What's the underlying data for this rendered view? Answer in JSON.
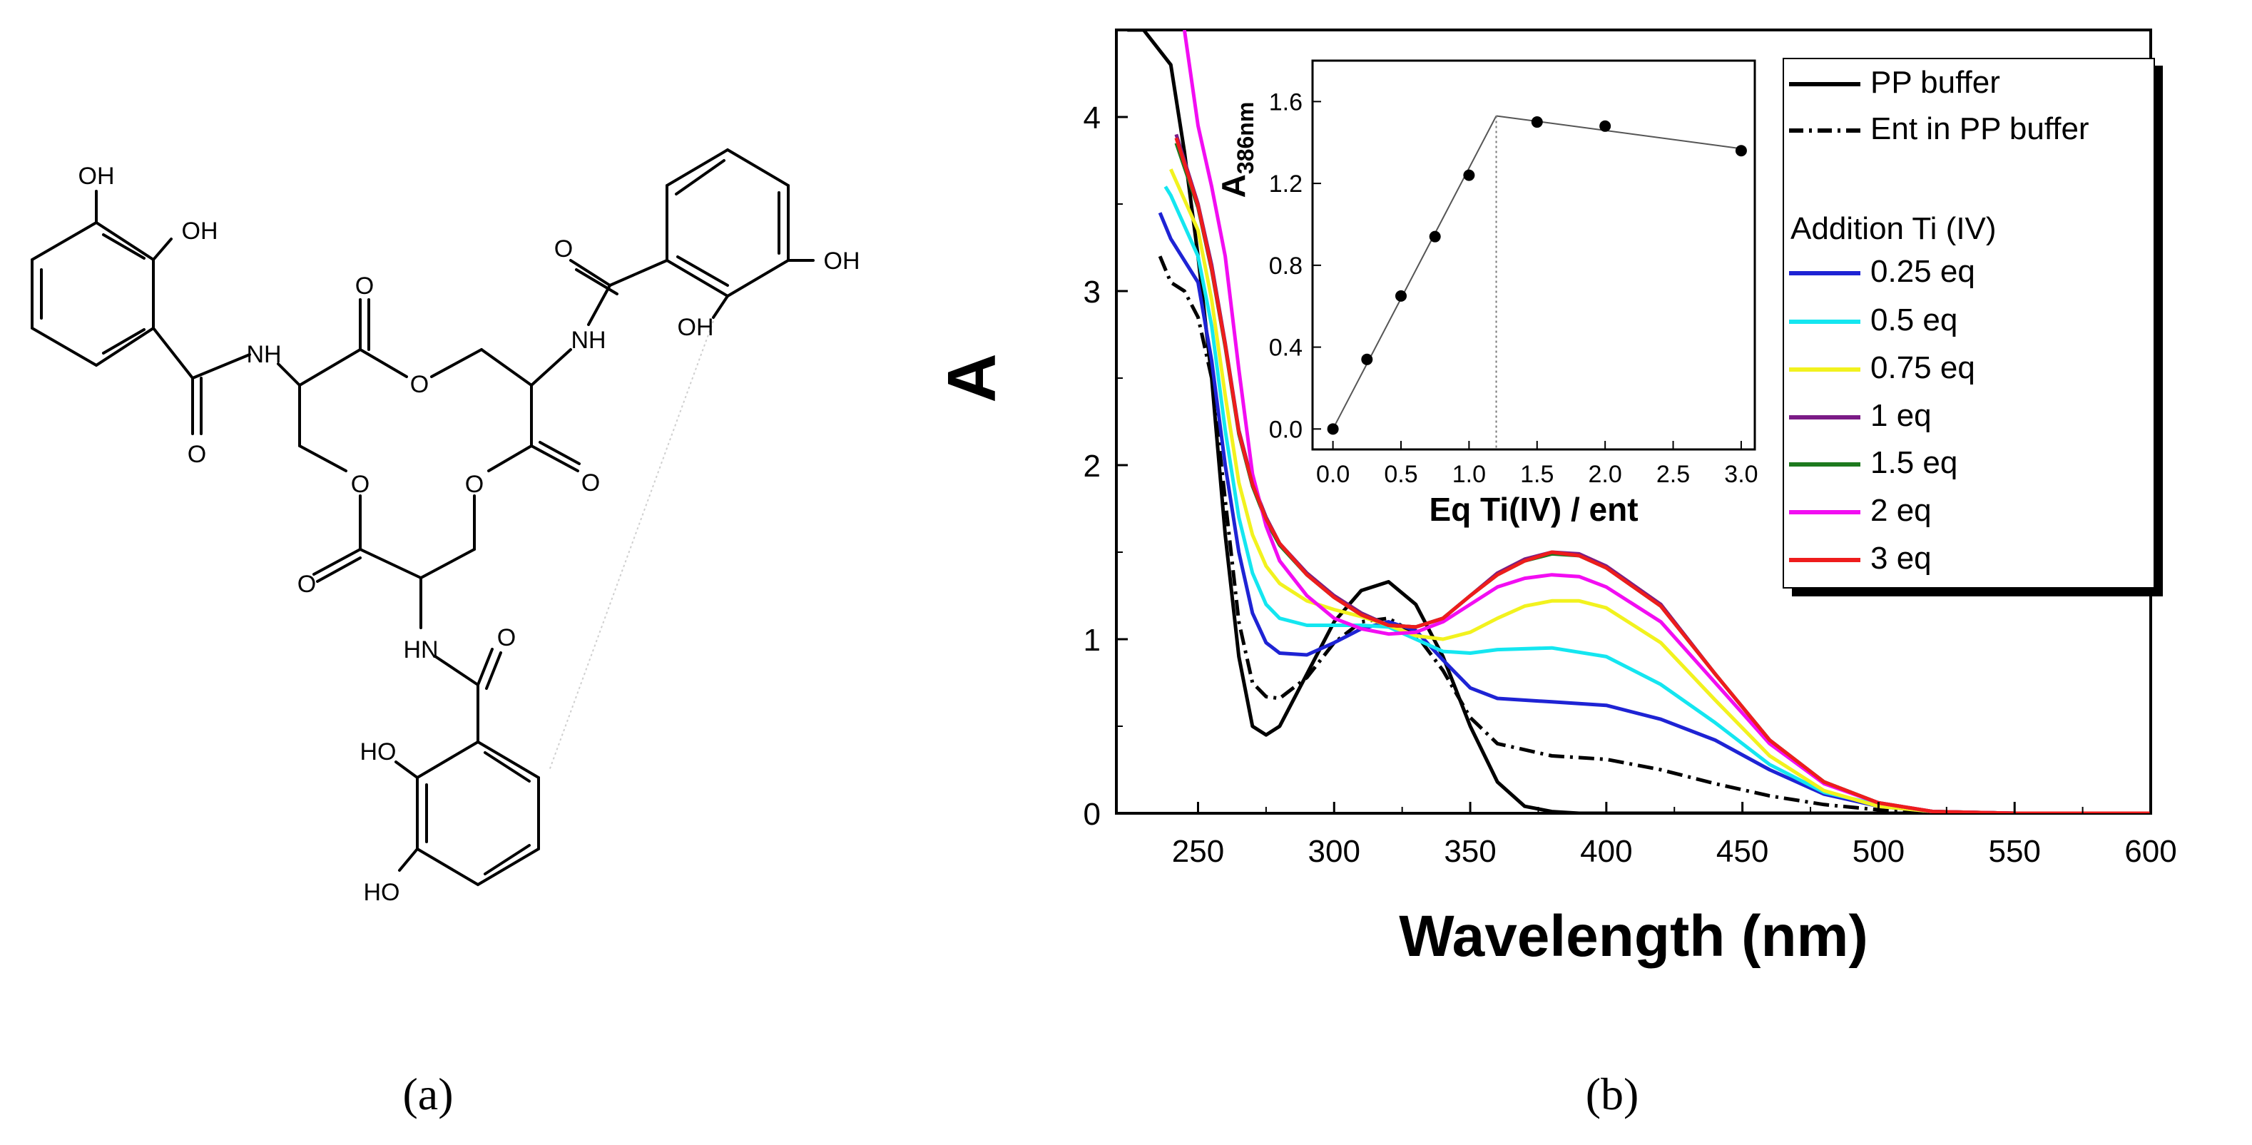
{
  "panel_labels": {
    "a": "(a)",
    "b": "(b)"
  },
  "molecule": {
    "atom_labels": {
      "oh_1": "OH",
      "oh_2": "OH",
      "nh_1": "NH",
      "o_carbonyl_1": "O",
      "o_amide_1": "O",
      "o_ring_1": "O",
      "o_carbonyl_2": "O",
      "nh_2": "NH",
      "o_amide_2": "O",
      "oh_3": "OH",
      "oh_4": "OH",
      "o_ring_2": "O",
      "o_ring_3": "O",
      "o_carbonyl_3": "O",
      "o_carbonyl_4": "O",
      "nh_3": "HN",
      "o_amide_3": "O",
      "ho_1": "HO",
      "ho_2": "HO"
    }
  },
  "chart_data": [
    {
      "type": "line",
      "xlabel": "Wavelength (nm)",
      "ylabel": "A",
      "xlim": [
        220,
        600
      ],
      "ylim": [
        0,
        4.5
      ],
      "xticks": [
        "250",
        "300",
        "350",
        "400",
        "450",
        "500",
        "550",
        "600"
      ],
      "yticks": [
        "0",
        "1",
        "2",
        "3",
        "4"
      ],
      "legend_position": "top-right",
      "legend_heading": "Addition Ti (IV)",
      "series": [
        {
          "name": "PP buffer",
          "color": "#000000",
          "dash": "solid",
          "x": [
            224,
            230,
            240,
            245,
            250,
            255,
            260,
            265,
            270,
            275,
            280,
            290,
            300,
            310,
            320,
            330,
            340,
            350,
            360,
            370,
            380,
            390,
            400,
            450,
            500,
            600
          ],
          "y": [
            4.5,
            4.5,
            4.3,
            3.8,
            3.2,
            2.5,
            1.6,
            0.9,
            0.5,
            0.45,
            0.5,
            0.8,
            1.1,
            1.28,
            1.33,
            1.2,
            0.9,
            0.5,
            0.18,
            0.04,
            0.01,
            0,
            0,
            0,
            0,
            0
          ]
        },
        {
          "name": "Ent in PP buffer",
          "color": "#000000",
          "dash": "dashdot",
          "x": [
            236,
            240,
            245,
            250,
            255,
            260,
            265,
            270,
            275,
            280,
            290,
            300,
            310,
            320,
            330,
            340,
            350,
            360,
            380,
            400,
            420,
            440,
            460,
            480,
            500,
            520,
            550,
            600
          ],
          "y": [
            3.2,
            3.05,
            3.0,
            2.85,
            2.5,
            1.8,
            1.1,
            0.75,
            0.67,
            0.66,
            0.78,
            0.98,
            1.1,
            1.12,
            1.03,
            0.82,
            0.55,
            0.4,
            0.33,
            0.31,
            0.25,
            0.17,
            0.1,
            0.05,
            0.02,
            0.01,
            0,
            0
          ]
        },
        {
          "name": "0.25 eq",
          "color": "#1e23d4",
          "dash": "solid",
          "x": [
            236,
            240,
            250,
            255,
            260,
            265,
            270,
            275,
            280,
            290,
            300,
            310,
            320,
            330,
            340,
            350,
            360,
            380,
            400,
            420,
            440,
            460,
            480,
            500,
            520,
            550,
            600
          ],
          "y": [
            3.45,
            3.3,
            3.05,
            2.6,
            2.0,
            1.5,
            1.15,
            0.98,
            0.92,
            0.91,
            0.98,
            1.06,
            1.1,
            1.05,
            0.88,
            0.72,
            0.66,
            0.64,
            0.62,
            0.54,
            0.42,
            0.25,
            0.11,
            0.04,
            0.01,
            0,
            0
          ]
        },
        {
          "name": "0.5 eq",
          "color": "#14e6f0",
          "dash": "solid",
          "x": [
            238,
            240,
            250,
            255,
            260,
            265,
            270,
            275,
            280,
            290,
            300,
            310,
            320,
            330,
            340,
            350,
            360,
            380,
            400,
            420,
            440,
            460,
            480,
            500,
            520,
            550,
            600
          ],
          "y": [
            3.6,
            3.55,
            3.2,
            2.8,
            2.2,
            1.7,
            1.38,
            1.2,
            1.12,
            1.08,
            1.08,
            1.08,
            1.07,
            1.0,
            0.93,
            0.92,
            0.94,
            0.95,
            0.9,
            0.74,
            0.52,
            0.28,
            0.12,
            0.05,
            0.01,
            0,
            0
          ]
        },
        {
          "name": "0.75 eq",
          "color": "#f2f21e",
          "dash": "solid",
          "x": [
            240,
            250,
            255,
            260,
            265,
            270,
            275,
            280,
            290,
            300,
            310,
            320,
            330,
            340,
            350,
            360,
            370,
            380,
            390,
            400,
            420,
            440,
            460,
            480,
            500,
            520,
            550,
            600
          ],
          "y": [
            3.7,
            3.35,
            2.95,
            2.4,
            1.9,
            1.6,
            1.42,
            1.32,
            1.22,
            1.17,
            1.13,
            1.08,
            1.02,
            1.0,
            1.04,
            1.12,
            1.19,
            1.22,
            1.22,
            1.18,
            0.98,
            0.65,
            0.33,
            0.13,
            0.04,
            0.01,
            0,
            0
          ]
        },
        {
          "name": "1 eq",
          "color": "#7b1b86",
          "dash": "solid",
          "x": [
            242,
            250,
            255,
            260,
            265,
            270,
            275,
            280,
            290,
            300,
            310,
            320,
            330,
            340,
            350,
            360,
            370,
            380,
            390,
            400,
            420,
            440,
            460,
            480,
            500,
            520,
            550,
            600
          ],
          "y": [
            3.9,
            3.5,
            3.15,
            2.7,
            2.2,
            1.9,
            1.7,
            1.55,
            1.38,
            1.25,
            1.15,
            1.08,
            1.07,
            1.12,
            1.25,
            1.38,
            1.46,
            1.5,
            1.49,
            1.42,
            1.2,
            0.8,
            0.42,
            0.18,
            0.06,
            0.01,
            0,
            0
          ]
        },
        {
          "name": "1.5 eq",
          "color": "#1d7a1e",
          "dash": "solid",
          "x": [
            242,
            250,
            255,
            260,
            265,
            270,
            275,
            280,
            290,
            300,
            310,
            320,
            330,
            340,
            350,
            360,
            370,
            380,
            390,
            400,
            420,
            440,
            460,
            480,
            500,
            520,
            550,
            600
          ],
          "y": [
            3.85,
            3.48,
            3.12,
            2.68,
            2.18,
            1.88,
            1.68,
            1.54,
            1.37,
            1.24,
            1.14,
            1.08,
            1.07,
            1.12,
            1.25,
            1.37,
            1.45,
            1.49,
            1.48,
            1.41,
            1.19,
            0.8,
            0.42,
            0.18,
            0.06,
            0.01,
            0,
            0
          ]
        },
        {
          "name": "2 eq",
          "color": "#f20df2",
          "dash": "solid",
          "x": [
            245,
            250,
            255,
            260,
            265,
            270,
            275,
            280,
            290,
            300,
            310,
            320,
            330,
            340,
            350,
            360,
            370,
            380,
            390,
            400,
            420,
            440,
            460,
            480,
            500,
            520,
            550,
            600
          ],
          "y": [
            4.5,
            3.95,
            3.6,
            3.2,
            2.55,
            1.95,
            1.65,
            1.45,
            1.25,
            1.12,
            1.06,
            1.03,
            1.04,
            1.1,
            1.2,
            1.3,
            1.35,
            1.37,
            1.36,
            1.3,
            1.1,
            0.75,
            0.4,
            0.17,
            0.06,
            0.01,
            0,
            0
          ]
        },
        {
          "name": "3 eq",
          "color": "#ee1c1c",
          "dash": "solid",
          "x": [
            242,
            250,
            255,
            260,
            265,
            270,
            275,
            280,
            290,
            300,
            310,
            320,
            330,
            340,
            350,
            360,
            370,
            380,
            390,
            400,
            420,
            440,
            460,
            480,
            500,
            520,
            550,
            600
          ],
          "y": [
            3.88,
            3.49,
            3.13,
            2.69,
            2.19,
            1.89,
            1.69,
            1.55,
            1.37,
            1.24,
            1.14,
            1.08,
            1.07,
            1.12,
            1.25,
            1.37,
            1.45,
            1.5,
            1.48,
            1.41,
            1.19,
            0.8,
            0.42,
            0.18,
            0.06,
            0.01,
            0,
            0
          ]
        }
      ]
    },
    {
      "type": "scatter",
      "xlabel": "Eq Ti(IV) / ent",
      "ylabel": "A",
      "ylabel_subscript": "386nm",
      "xlim": [
        -0.15,
        3.1
      ],
      "ylim": [
        -0.1,
        1.8
      ],
      "xticks": [
        "0.0",
        "0.5",
        "1.0",
        "1.5",
        "2.0",
        "2.5",
        "3.0"
      ],
      "yticks": [
        "0.0",
        "0.4",
        "0.8",
        "1.2",
        "1.6"
      ],
      "points": {
        "x": [
          0,
          0.25,
          0.5,
          0.75,
          1.0,
          1.5,
          2.0,
          3.0
        ],
        "y": [
          0.0,
          0.34,
          0.65,
          0.94,
          1.24,
          1.5,
          1.48,
          1.36
        ]
      },
      "fit_lines": [
        {
          "x": [
            0,
            1.2
          ],
          "y": [
            0.0,
            1.53
          ]
        },
        {
          "x": [
            1.2,
            3.0
          ],
          "y": [
            1.53,
            1.37
          ]
        }
      ],
      "guide_x": 1.2
    }
  ]
}
